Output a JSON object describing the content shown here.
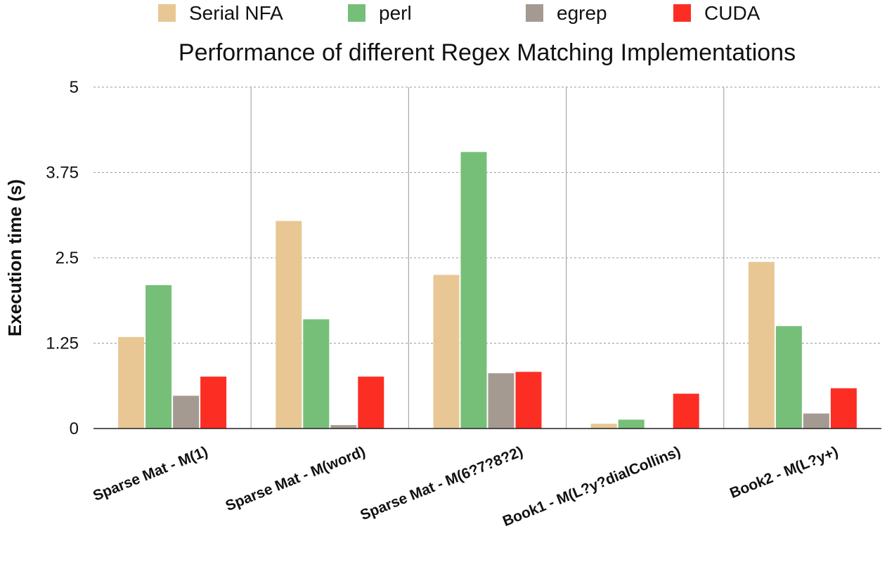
{
  "chart_data": {
    "type": "bar",
    "title": "Performance of different Regex Matching Implementations",
    "xlabel": "",
    "ylabel": "Execution time (s)",
    "ylim": [
      0,
      5
    ],
    "yticks": [
      "0",
      "1.25",
      "2.5",
      "3.75",
      "5"
    ],
    "grid": true,
    "legend_position": "top",
    "categories": [
      "Sparse Mat  - M(1)",
      "Sparse Mat - M(word)",
      "Sparse Mat - M(6?7?8?2)",
      "Book1 - M(L?y?dialCollins)",
      "Book2 - M(L?y+)"
    ],
    "series": [
      {
        "name": "Serial NFA",
        "color": "#e8c794",
        "values": [
          1.34,
          3.04,
          2.25,
          0.07,
          2.44
        ]
      },
      {
        "name": "perl",
        "color": "#76bf78",
        "values": [
          2.1,
          1.6,
          4.05,
          0.13,
          1.5
        ]
      },
      {
        "name": "egrep",
        "color": "#a49a91",
        "values": [
          0.48,
          0.05,
          0.81,
          0.0,
          0.22
        ]
      },
      {
        "name": "CUDA",
        "color": "#fc2e24",
        "values": [
          0.76,
          0.76,
          0.83,
          0.51,
          0.59
        ]
      }
    ]
  }
}
